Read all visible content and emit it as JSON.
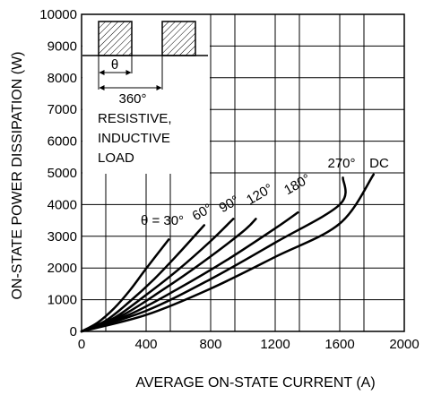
{
  "chart_data": {
    "type": "line",
    "xlabel": "AVERAGE ON-STATE CURRENT  (A)",
    "ylabel": "ON-STATE POWER DISSIPATION  (W)",
    "xlim": [
      0,
      2000
    ],
    "ylim": [
      0,
      10000
    ],
    "x_ticks": [
      0,
      400,
      800,
      1200,
      1600,
      2000
    ],
    "y_ticks": [
      0,
      1000,
      2000,
      3000,
      4000,
      5000,
      6000,
      7000,
      8000,
      9000,
      10000
    ],
    "x_tick_labels": [
      "0",
      "400",
      "800",
      "1200",
      "1600",
      "2000"
    ],
    "y_tick_labels": [
      "0",
      "1000",
      "2000",
      "3000",
      "4000",
      "5000",
      "6000",
      "7000",
      "8000",
      "9000",
      "10000"
    ],
    "grid": true,
    "series": [
      {
        "name": "θ = 30°",
        "x": [
          0,
          100,
          200,
          300,
          400,
          540
        ],
        "y": [
          0,
          280,
          720,
          1300,
          1980,
          2900
        ]
      },
      {
        "name": "60°",
        "x": [
          0,
          150,
          300,
          450,
          600,
          760
        ],
        "y": [
          0,
          340,
          950,
          1650,
          2450,
          3350
        ]
      },
      {
        "name": "90°",
        "x": [
          0,
          200,
          400,
          600,
          800,
          940
        ],
        "y": [
          0,
          420,
          1150,
          1950,
          2850,
          3550
        ]
      },
      {
        "name": "120°",
        "x": [
          0,
          250,
          500,
          750,
          1000,
          1080
        ],
        "y": [
          0,
          500,
          1300,
          2180,
          3150,
          3550
        ]
      },
      {
        "name": "180°",
        "x": [
          0,
          300,
          600,
          900,
          1200,
          1340
        ],
        "y": [
          0,
          540,
          1350,
          2250,
          3250,
          3750
        ]
      },
      {
        "name": "270°",
        "x": [
          0,
          400,
          800,
          1200,
          1600,
          1620
        ],
        "y": [
          0,
          650,
          1650,
          2800,
          4000,
          4850
        ]
      },
      {
        "name": "DC",
        "x": [
          0,
          400,
          800,
          1200,
          1600,
          1810
        ],
        "y": [
          0,
          520,
          1350,
          2350,
          3400,
          4950
        ]
      }
    ],
    "inset": {
      "angle_label": "θ",
      "period_label": "360°",
      "load_text": [
        "RESISTIVE,",
        "INDUCTIVE",
        "LOAD"
      ]
    }
  }
}
